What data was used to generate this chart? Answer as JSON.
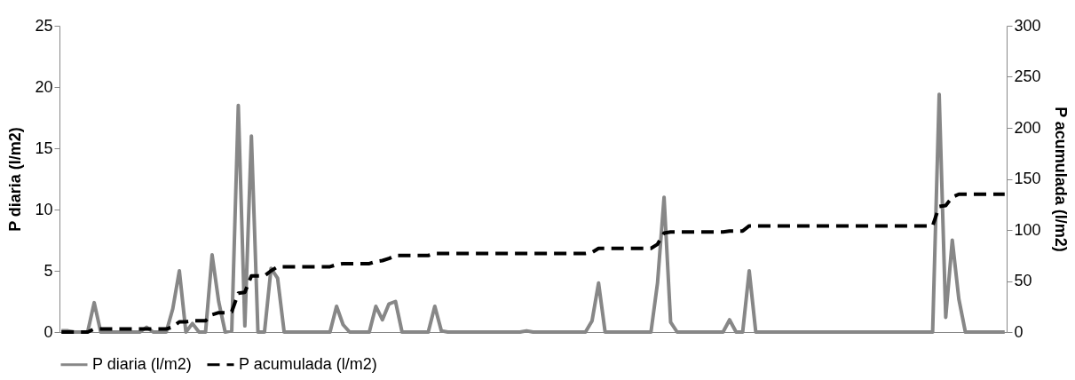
{
  "chart_data": {
    "type": "line",
    "ylabel": "P diaria (l/m2)",
    "y2label": "P acumulada (l/m2)",
    "categories": [
      null,
      null,
      null,
      null,
      null,
      null,
      null,
      null,
      null,
      null,
      null,
      null,
      null,
      null,
      null,
      null,
      null,
      null,
      null,
      null,
      null,
      null,
      null,
      null,
      null,
      null,
      null,
      null,
      null,
      null,
      null,
      null,
      null,
      null,
      null,
      null,
      null,
      null,
      null,
      null,
      null,
      null,
      null,
      null,
      null,
      null,
      null,
      null,
      null,
      null,
      null,
      null,
      null,
      null,
      null,
      null,
      null,
      null,
      null,
      null,
      null,
      null,
      null,
      null,
      null,
      null,
      null,
      null,
      null,
      null,
      null,
      null,
      null,
      null,
      null,
      null,
      null,
      null,
      null,
      null,
      null,
      null,
      null,
      null,
      null,
      null,
      null,
      null,
      null,
      null,
      null,
      null,
      null,
      null,
      null,
      null,
      null,
      null,
      null,
      null,
      null,
      null,
      null,
      null,
      null,
      null,
      null,
      null,
      null,
      null,
      null,
      null,
      null,
      null,
      null,
      null,
      null,
      null,
      null,
      null,
      null,
      null,
      null,
      null,
      null,
      null,
      null,
      null,
      null,
      null,
      null,
      null,
      null,
      null,
      null,
      null,
      null,
      null,
      null,
      null,
      null,
      null,
      null,
      null,
      null
    ],
    "series": [
      {
        "name": "P diaria (l/m2)",
        "color": "#878787",
        "line_style": "solid",
        "values": [
          0.1,
          0.1,
          0,
          0,
          0,
          2.4,
          0,
          0,
          0,
          0,
          0,
          0,
          0,
          0.4,
          0,
          0,
          0,
          1.9,
          5.0,
          0,
          0.7,
          0,
          0,
          6.3,
          2.5,
          0,
          0.1,
          18.5,
          0.5,
          16.0,
          0,
          0,
          5.2,
          4.4,
          0,
          0,
          0,
          0,
          0,
          0,
          0,
          0,
          2.1,
          0.6,
          0,
          0,
          0,
          0,
          2.1,
          1.0,
          2.3,
          2.5,
          0,
          0,
          0,
          0,
          0,
          2.1,
          0.1,
          0,
          0,
          0,
          0,
          0,
          0,
          0,
          0,
          0,
          0,
          0,
          0,
          0.1,
          0,
          0,
          0,
          0,
          0,
          0,
          0,
          0,
          0,
          0.9,
          4.0,
          0,
          0,
          0,
          0,
          0,
          0,
          0,
          0,
          4.0,
          11.0,
          0.8,
          0,
          0,
          0,
          0,
          0,
          0,
          0,
          0,
          1.0,
          0,
          0,
          5.0,
          0,
          0,
          0,
          0,
          0,
          0,
          0,
          0,
          0,
          0,
          0,
          0,
          0,
          0,
          0,
          0,
          0,
          0,
          0,
          0,
          0,
          0,
          0,
          0,
          0,
          0,
          0,
          0,
          19.4,
          1.2,
          7.5,
          2.7,
          0,
          0,
          0,
          0,
          0,
          0,
          0
        ]
      },
      {
        "name": "P acumulada (l/m2)",
        "color": "#000000",
        "line_style": "dashed",
        "axis": "y2",
        "values": [
          0,
          0,
          0,
          0,
          0,
          3,
          3,
          3,
          3,
          3,
          3,
          3,
          3,
          3,
          3,
          3,
          3,
          5,
          10,
          10,
          11,
          11,
          11,
          17,
          19,
          19,
          20,
          38,
          39,
          55,
          55,
          55,
          60,
          64,
          64,
          64,
          64,
          64,
          64,
          64,
          64,
          64,
          66,
          67,
          67,
          67,
          67,
          67,
          69,
          70,
          72,
          75,
          75,
          75,
          75,
          75,
          75,
          77,
          77,
          77,
          77,
          77,
          77,
          77,
          77,
          77,
          77,
          77,
          77,
          77,
          77,
          77,
          77,
          77,
          77,
          77,
          77,
          77,
          77,
          77,
          77,
          78,
          82,
          82,
          82,
          82,
          82,
          82,
          82,
          82,
          82,
          86,
          97,
          98,
          98,
          98,
          98,
          98,
          98,
          98,
          98,
          98,
          99,
          99,
          99,
          104,
          104,
          104,
          104,
          104,
          104,
          104,
          104,
          104,
          104,
          104,
          104,
          104,
          104,
          104,
          104,
          104,
          104,
          104,
          104,
          104,
          104,
          104,
          104,
          104,
          104,
          104,
          104,
          104,
          123,
          124,
          132,
          135,
          135,
          135,
          135,
          135,
          135,
          135,
          135
        ]
      }
    ],
    "ylim": [
      0,
      25
    ],
    "yticks": [
      0,
      5,
      10,
      15,
      20,
      25
    ],
    "y2lim": [
      0,
      300
    ],
    "y2ticks": [
      0,
      50,
      100,
      150,
      200,
      250,
      300
    ],
    "legend": "bottom",
    "grid": false,
    "marker": "none",
    "tick_labels": "y"
  }
}
